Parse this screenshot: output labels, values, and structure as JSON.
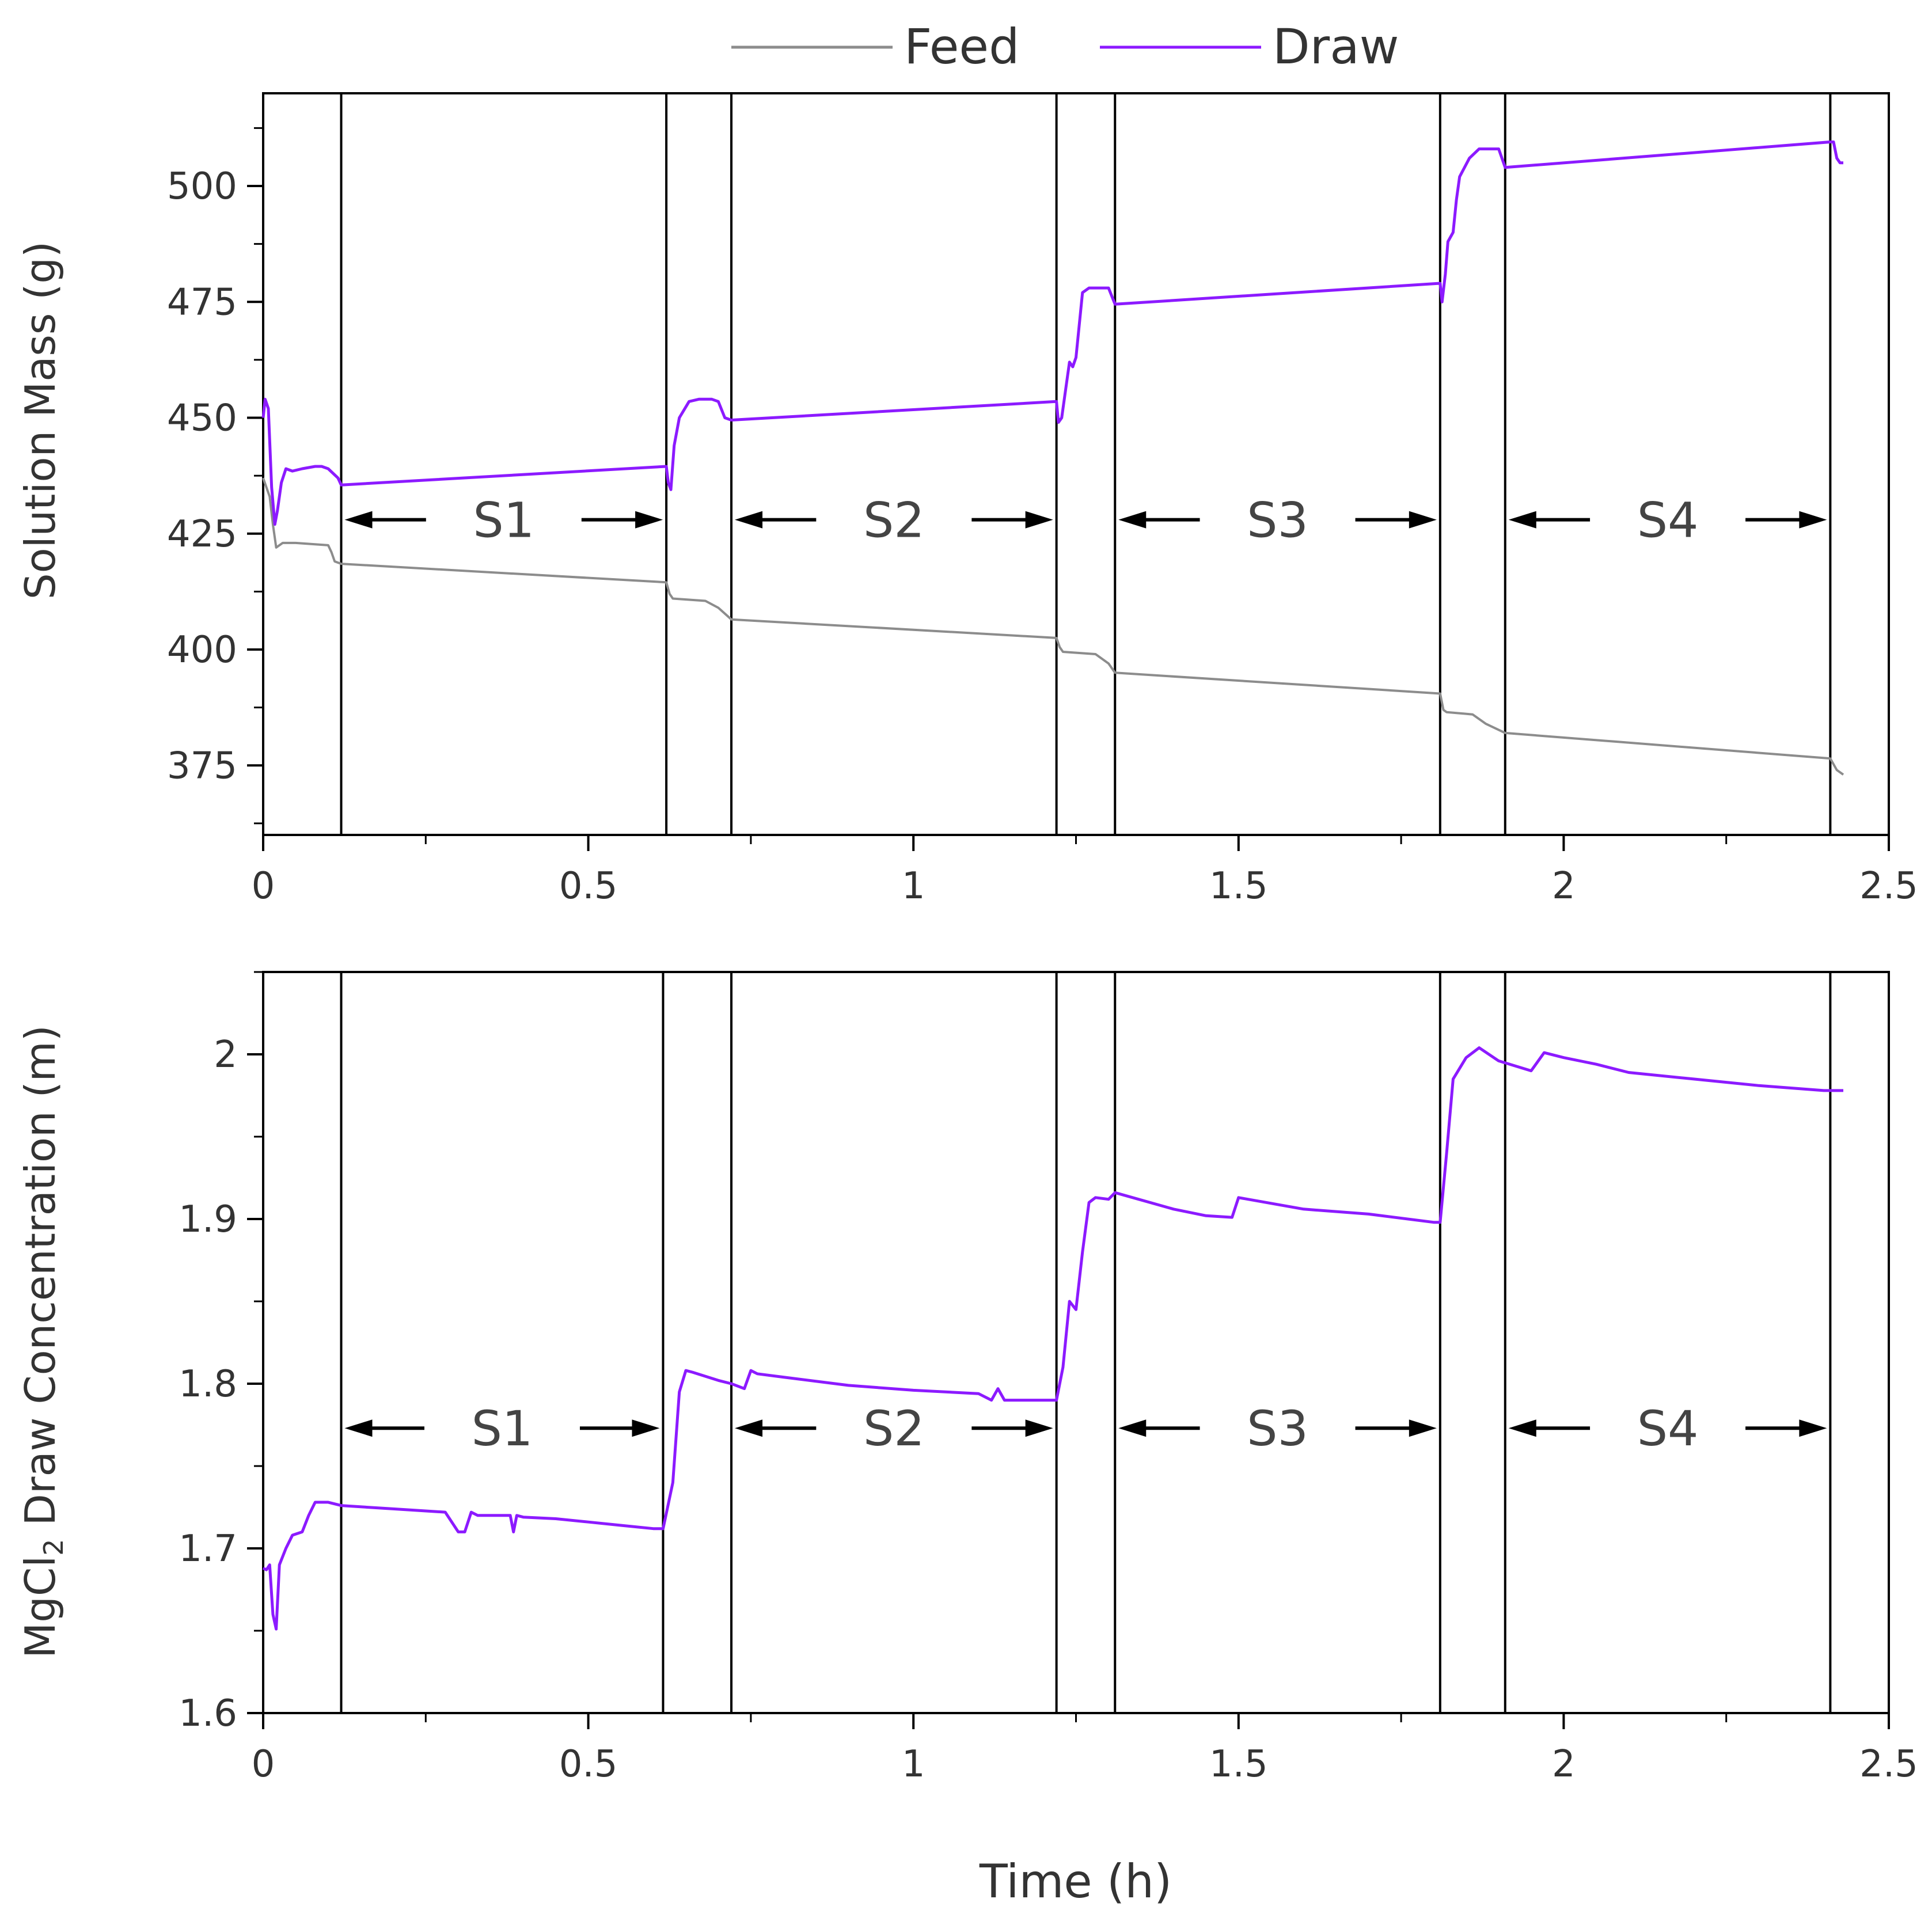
{
  "chart_data": [
    {
      "type": "line",
      "title": "",
      "xlabel": "",
      "ylabel": "Solution Mass (g)",
      "xlim": [
        0,
        2.5
      ],
      "ylim": [
        360,
        520
      ],
      "xticks": [
        "0",
        "0.5",
        "1",
        "1.5",
        "2",
        "2.5"
      ],
      "yticks": [
        "375",
        "400",
        "425",
        "450",
        "475",
        "500"
      ],
      "ytick_values": [
        375,
        400,
        425,
        450,
        475,
        500
      ],
      "legend": [
        "Feed",
        "Draw"
      ],
      "stage_boundaries": [
        0.12,
        0.62,
        0.72,
        1.22,
        1.31,
        1.81,
        1.91,
        2.41
      ],
      "segments": [
        {
          "label": "S1",
          "start": 0.12,
          "end": 0.62,
          "y": 428
        },
        {
          "label": "S2",
          "start": 0.72,
          "end": 1.22,
          "y": 428
        },
        {
          "label": "S3",
          "start": 1.31,
          "end": 1.81,
          "y": 428
        },
        {
          "label": "S4",
          "start": 1.91,
          "end": 2.41,
          "y": 428
        }
      ],
      "series": [
        {
          "name": "Feed",
          "color": "#8c8c8c",
          "x": [
            0,
            0.005,
            0.01,
            0.015,
            0.02,
            0.03,
            0.05,
            0.1,
            0.105,
            0.11,
            0.12,
            0.62,
            0.625,
            0.63,
            0.68,
            0.7,
            0.72,
            1.22,
            1.225,
            1.23,
            1.28,
            1.3,
            1.31,
            1.81,
            1.815,
            1.82,
            1.86,
            1.88,
            1.91,
            2.41,
            2.42,
            2.43
          ],
          "values": [
            437,
            435,
            433,
            427,
            422,
            423,
            423,
            422.5,
            421,
            419,
            418.5,
            414.5,
            412,
            411,
            410.5,
            409,
            406.5,
            402.5,
            400.5,
            399.5,
            399,
            397,
            395,
            390.5,
            387,
            386.5,
            386,
            384,
            382,
            376.5,
            374,
            373
          ]
        },
        {
          "name": "Draw",
          "color": "#8c1aff",
          "x": [
            0,
            0.003,
            0.008,
            0.013,
            0.018,
            0.022,
            0.028,
            0.035,
            0.045,
            0.06,
            0.08,
            0.09,
            0.1,
            0.115,
            0.12,
            0.62,
            0.623,
            0.627,
            0.632,
            0.64,
            0.655,
            0.67,
            0.69,
            0.7,
            0.71,
            0.72,
            1.22,
            1.223,
            1.228,
            1.233,
            1.24,
            1.245,
            1.25,
            1.26,
            1.27,
            1.28,
            1.3,
            1.31,
            1.81,
            1.813,
            1.818,
            1.822,
            1.83,
            1.835,
            1.84,
            1.855,
            1.87,
            1.89,
            1.9,
            1.91,
            2.41,
            2.415,
            2.42,
            2.425,
            2.43
          ],
          "values": [
            450,
            454,
            452,
            435,
            427,
            430,
            436,
            439,
            438.5,
            439,
            439.5,
            439.5,
            439,
            437,
            435.5,
            439.5,
            436,
            434.5,
            444,
            450,
            453.5,
            454,
            454,
            453.5,
            450,
            449.5,
            453.5,
            449,
            450,
            455,
            462,
            461,
            463,
            477,
            478,
            478,
            478,
            474.5,
            479,
            475,
            481,
            488,
            490,
            497,
            502,
            506,
            508,
            508,
            508,
            504,
            509.5,
            509.5,
            506,
            505,
            505
          ]
        }
      ]
    },
    {
      "type": "line",
      "title": "",
      "xlabel": "Time (h)",
      "ylabel_main": "MgCl",
      "ylabel_sub": "2",
      "ylabel_rest": " Draw Concentration (m)",
      "xlim": [
        0,
        2.5
      ],
      "ylim": [
        1.6,
        2.05
      ],
      "xticks": [
        "0",
        "0.5",
        "1",
        "1.5",
        "2",
        "2.5"
      ],
      "yticks": [
        "1.6",
        "1.7",
        "1.8",
        "1.9",
        "2"
      ],
      "ytick_values": [
        1.6,
        1.7,
        1.8,
        1.9,
        2.0
      ],
      "stage_boundaries": [
        0.12,
        0.615,
        0.72,
        1.22,
        1.31,
        1.81,
        1.91,
        2.41
      ],
      "segments": [
        {
          "label": "S1",
          "start": 0.12,
          "end": 0.615,
          "y": 1.773
        },
        {
          "label": "S2",
          "start": 0.72,
          "end": 1.22,
          "y": 1.773
        },
        {
          "label": "S3",
          "start": 1.31,
          "end": 1.81,
          "y": 1.773
        },
        {
          "label": "S4",
          "start": 1.91,
          "end": 2.41,
          "y": 1.773
        }
      ],
      "series": [
        {
          "name": "Draw",
          "color": "#8c1aff",
          "x": [
            0,
            0.005,
            0.01,
            0.015,
            0.02,
            0.025,
            0.035,
            0.045,
            0.06,
            0.07,
            0.08,
            0.1,
            0.12,
            0.2,
            0.28,
            0.3,
            0.31,
            0.32,
            0.33,
            0.38,
            0.385,
            0.39,
            0.4,
            0.45,
            0.5,
            0.55,
            0.6,
            0.615,
            0.63,
            0.64,
            0.65,
            0.66,
            0.7,
            0.72,
            0.74,
            0.75,
            0.76,
            0.8,
            0.9,
            1.0,
            1.1,
            1.12,
            1.13,
            1.14,
            1.2,
            1.22,
            1.23,
            1.24,
            1.25,
            1.26,
            1.27,
            1.28,
            1.3,
            1.31,
            1.4,
            1.45,
            1.49,
            1.5,
            1.6,
            1.7,
            1.8,
            1.81,
            1.82,
            1.83,
            1.85,
            1.87,
            1.9,
            1.95,
            1.97,
            2.0,
            2.05,
            2.1,
            2.2,
            2.3,
            2.4,
            2.43
          ],
          "values": [
            1.688,
            1.687,
            1.69,
            1.66,
            1.651,
            1.69,
            1.7,
            1.708,
            1.71,
            1.72,
            1.728,
            1.728,
            1.726,
            1.724,
            1.722,
            1.71,
            1.71,
            1.722,
            1.72,
            1.72,
            1.71,
            1.72,
            1.719,
            1.718,
            1.716,
            1.714,
            1.712,
            1.712,
            1.74,
            1.795,
            1.808,
            1.807,
            1.802,
            1.8,
            1.797,
            1.808,
            1.806,
            1.804,
            1.799,
            1.796,
            1.794,
            1.79,
            1.797,
            1.79,
            1.79,
            1.79,
            1.81,
            1.85,
            1.845,
            1.88,
            1.91,
            1.913,
            1.912,
            1.916,
            1.906,
            1.902,
            1.901,
            1.913,
            1.906,
            1.903,
            1.898,
            1.898,
            1.94,
            1.985,
            1.998,
            2.004,
            1.996,
            1.99,
            2.001,
            1.998,
            1.994,
            1.989,
            1.985,
            1.981,
            1.978,
            1.978
          ]
        }
      ]
    }
  ]
}
